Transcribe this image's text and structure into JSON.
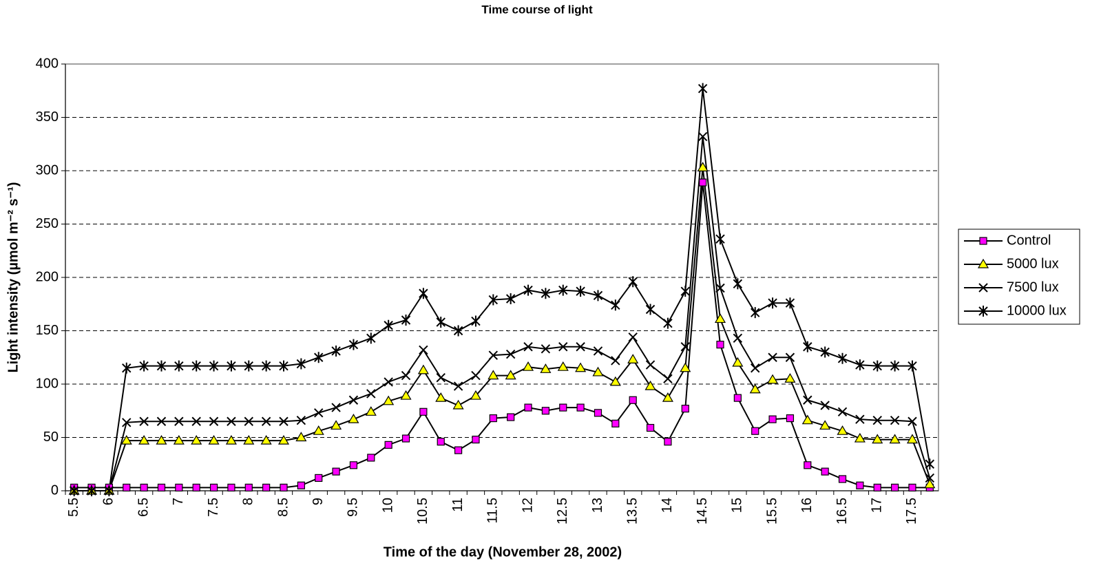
{
  "chart_data": {
    "type": "line",
    "title": "Time course of light",
    "x_label": "Time of the day (November 28, 2002)",
    "y_label": "Light intensity (µmol m⁻² s⁻¹)",
    "categories": [
      "5.5",
      null,
      "6",
      null,
      "6.5",
      null,
      "7",
      null,
      "7.5",
      null,
      "8",
      null,
      "8.5",
      null,
      "9",
      null,
      "9.5",
      null,
      "10",
      null,
      "10.5",
      null,
      "11",
      null,
      "11.5",
      null,
      "12",
      null,
      "12.5",
      null,
      "13",
      null,
      "13.5",
      null,
      "14",
      null,
      "14.5",
      null,
      "15",
      null,
      "15.5",
      null,
      "16",
      null,
      "16.5",
      null,
      "17",
      null,
      "17.5",
      null
    ],
    "ylim": [
      0,
      400
    ],
    "yticks": [
      0,
      50,
      100,
      150,
      200,
      250,
      300,
      350,
      400
    ],
    "grid": true,
    "legend": "right",
    "series": [
      {
        "name": "Control",
        "color": "#000000",
        "marker": "square",
        "marker_color": "#ff00ff",
        "values": [
          3,
          3,
          3,
          3,
          3,
          3,
          3,
          3,
          3,
          3,
          3,
          3,
          3,
          5,
          12,
          18,
          24,
          31,
          43,
          49,
          74,
          46,
          38,
          48,
          68,
          69,
          78,
          75,
          78,
          78,
          73,
          63,
          85,
          59,
          46,
          77,
          289,
          137,
          87,
          56,
          67,
          68,
          24,
          18,
          11,
          5,
          3,
          3,
          3,
          3
        ]
      },
      {
        "name": "5000 lux",
        "color": "#000000",
        "marker": "triangle",
        "marker_color": "#ffff00",
        "values": [
          0,
          0,
          0,
          47,
          47,
          47,
          47,
          47,
          47,
          47,
          47,
          47,
          47,
          50,
          56,
          61,
          67,
          74,
          84,
          89,
          113,
          87,
          80,
          89,
          108,
          108,
          116,
          114,
          116,
          115,
          111,
          102,
          123,
          98,
          87,
          115,
          303,
          161,
          120,
          95,
          104,
          105,
          66,
          61,
          56,
          49,
          48,
          48,
          48,
          6
        ]
      },
      {
        "name": "7500 lux",
        "color": "#000000",
        "marker": "x",
        "marker_color": "#000000",
        "values": [
          0,
          0,
          0,
          64,
          65,
          65,
          65,
          65,
          65,
          65,
          65,
          65,
          65,
          66,
          73,
          78,
          85,
          91,
          102,
          108,
          132,
          106,
          98,
          108,
          127,
          128,
          135,
          133,
          135,
          135,
          131,
          122,
          144,
          118,
          105,
          135,
          332,
          190,
          143,
          115,
          125,
          125,
          85,
          80,
          74,
          67,
          66,
          66,
          65,
          12
        ]
      },
      {
        "name": "10000 lux",
        "color": "#000000",
        "marker": "star",
        "marker_color": "#000000",
        "values": [
          0,
          0,
          0,
          115,
          117,
          117,
          117,
          117,
          117,
          117,
          117,
          117,
          117,
          119,
          125,
          131,
          137,
          143,
          155,
          160,
          185,
          158,
          150,
          159,
          179,
          180,
          188,
          185,
          188,
          187,
          183,
          174,
          196,
          170,
          157,
          187,
          377,
          236,
          194,
          167,
          176,
          176,
          135,
          130,
          124,
          118,
          117,
          117,
          117,
          25
        ]
      }
    ]
  }
}
